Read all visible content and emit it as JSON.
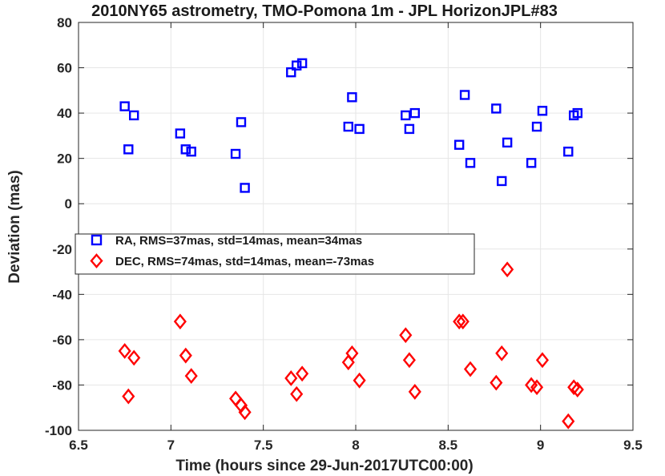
{
  "chart_data": {
    "type": "scatter",
    "title": "2010NY65 astrometry, TMO-Pomona 1m - JPL HorizonJPL#83",
    "xlabel": "Time (hours since 29-Jun-2017UTC00:00)",
    "ylabel": "Deviation (mas)",
    "xlim": [
      6.5,
      9.5
    ],
    "ylim": [
      -100,
      80
    ],
    "xticks": [
      "6.5",
      "7",
      "7.5",
      "8",
      "8.5",
      "9",
      "9.5"
    ],
    "xtick_values": [
      6.5,
      7,
      7.5,
      8,
      8.5,
      9,
      9.5
    ],
    "yticks": [
      "80",
      "60",
      "40",
      "20",
      "0",
      "-20",
      "-40",
      "-60",
      "-80",
      "-100"
    ],
    "ytick_values": [
      80,
      60,
      40,
      20,
      0,
      -20,
      -40,
      -60,
      -80,
      -100
    ],
    "grid": true,
    "legend_position": "center-left",
    "series": [
      {
        "name": "RA, RMS=37mas, std=14mas, mean=34mas",
        "marker": "square",
        "color": "#0000ff",
        "x": [
          6.75,
          6.77,
          6.8,
          7.05,
          7.08,
          7.11,
          7.35,
          7.38,
          7.4,
          7.65,
          7.68,
          7.71,
          7.96,
          7.98,
          8.02,
          8.27,
          8.29,
          8.32,
          8.56,
          8.59,
          8.62,
          8.76,
          8.79,
          8.82,
          8.95,
          8.98,
          9.01,
          9.15,
          9.18,
          9.2
        ],
        "y": [
          43,
          24,
          39,
          31,
          24,
          23,
          22,
          36,
          7,
          58,
          61,
          62,
          34,
          47,
          33,
          39,
          33,
          40,
          26,
          48,
          18,
          42,
          10,
          27,
          18,
          34,
          41,
          23,
          39,
          40
        ]
      },
      {
        "name": "DEC, RMS=74mas, std=14mas, mean=-73mas",
        "marker": "diamond",
        "color": "#ff0000",
        "x": [
          6.75,
          6.77,
          6.8,
          7.05,
          7.08,
          7.11,
          7.35,
          7.38,
          7.4,
          7.65,
          7.68,
          7.71,
          7.96,
          7.98,
          8.02,
          8.27,
          8.29,
          8.32,
          8.56,
          8.58,
          8.62,
          8.76,
          8.79,
          8.82,
          8.95,
          8.98,
          9.01,
          9.15,
          9.18,
          9.2
        ],
        "y": [
          -65,
          -85,
          -68,
          -52,
          -67,
          -76,
          -86,
          -89,
          -92,
          -77,
          -84,
          -75,
          -70,
          -66,
          -78,
          -58,
          -69,
          -83,
          -52,
          -52,
          -73,
          -79,
          -66,
          -29,
          -80,
          -81,
          -69,
          -96,
          -81,
          -82
        ]
      }
    ]
  }
}
